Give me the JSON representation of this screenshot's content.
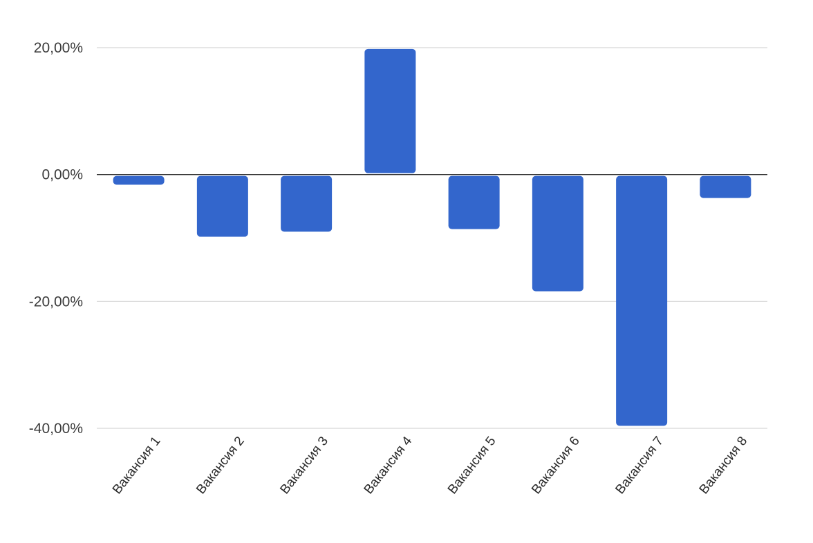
{
  "chart_data": {
    "type": "bar",
    "title": "",
    "xlabel": "",
    "ylabel": "",
    "categories": [
      "Вакансия 1",
      "Вакансия 2",
      "Вакансия 3",
      "Вакансия 4",
      "Вакансия 5",
      "Вакансия 6",
      "Вакансия 7",
      "Вакансия 8"
    ],
    "values": [
      -1.6,
      -9.8,
      -9.0,
      19.8,
      -8.6,
      -18.4,
      -39.6,
      -3.7
    ],
    "ylim": [
      -40,
      20
    ],
    "yticks": [
      20,
      0,
      -20,
      -40
    ],
    "ytick_labels": [
      "20,00%",
      "0,00%",
      "-20,00%",
      "-40,00%"
    ],
    "grid": true,
    "bar_color": "#3366cc",
    "legend": "none"
  }
}
